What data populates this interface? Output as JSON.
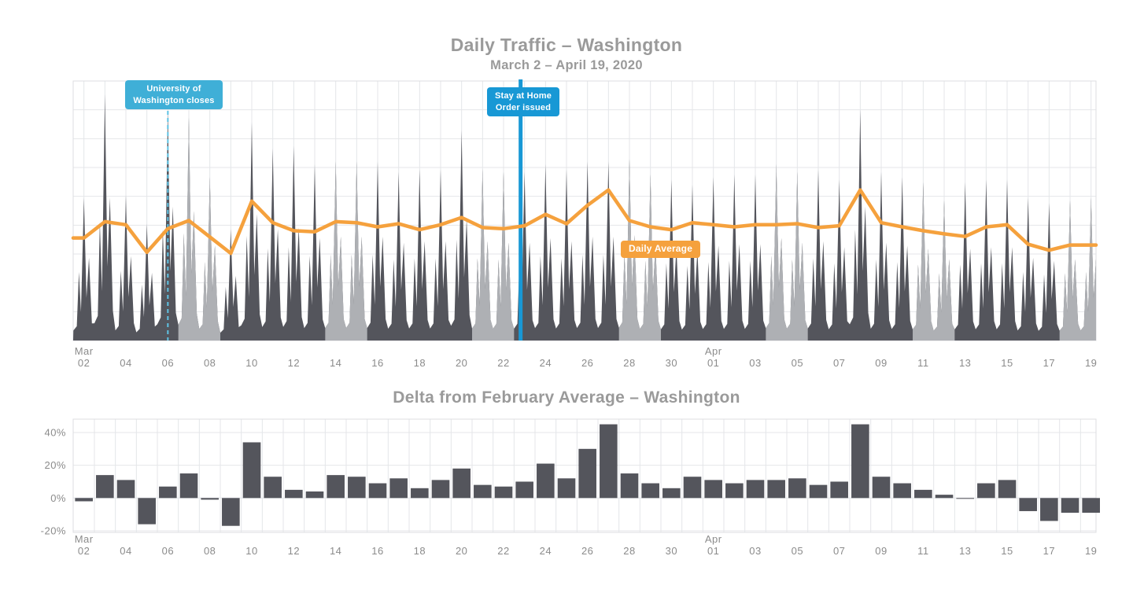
{
  "colors": {
    "weekday_area": "#54555c",
    "weekend_area": "#aeb0b4",
    "avg_line": "#f5a13d",
    "uw_box_blue": "#3fafd7",
    "uw_dash_line": "#5fc3e4",
    "stay_home_blue": "#1898d5",
    "bar": "#54555c",
    "grid": "#e4e6e9",
    "plot_border": "#dcdee1",
    "title_text": "#9a9a9a",
    "tick_text": "#8b8b8b"
  },
  "top": {
    "title": "Daily Traffic – Washington",
    "subtitle": "March 2 – April 19, 2020",
    "inline_label": "Daily Average",
    "annotations": [
      {
        "label": [
          "University of",
          "Washington closes"
        ],
        "date": "Mar 06",
        "day_index": 4,
        "line_style": "dashed"
      },
      {
        "label": [
          "Stay at Home",
          "Order issued"
        ],
        "date": "Mar 23",
        "day_index": 21,
        "line_style": "solid"
      }
    ]
  },
  "bottom": {
    "title": "Delta from February Average – Washington"
  },
  "chart_data": [
    {
      "type": "area",
      "title": "Daily Traffic – Washington",
      "subtitle": "March 2 – April 19, 2020",
      "x": [
        "Mar 02",
        "Mar 03",
        "Mar 04",
        "Mar 05",
        "Mar 06",
        "Mar 07",
        "Mar 08",
        "Mar 09",
        "Mar 10",
        "Mar 11",
        "Mar 12",
        "Mar 13",
        "Mar 14",
        "Mar 15",
        "Mar 16",
        "Mar 17",
        "Mar 18",
        "Mar 19",
        "Mar 20",
        "Mar 21",
        "Mar 22",
        "Mar 23",
        "Mar 24",
        "Mar 25",
        "Mar 26",
        "Mar 27",
        "Mar 28",
        "Mar 29",
        "Mar 30",
        "Mar 31",
        "Apr 01",
        "Apr 02",
        "Apr 03",
        "Apr 04",
        "Apr 05",
        "Apr 06",
        "Apr 07",
        "Apr 08",
        "Apr 09",
        "Apr 10",
        "Apr 11",
        "Apr 12",
        "Apr 13",
        "Apr 14",
        "Apr 15",
        "Apr 16",
        "Apr 17",
        "Apr 18",
        "Apr 19"
      ],
      "x_tick_every": 2,
      "weekend_indices": [
        5,
        6,
        12,
        13,
        19,
        20,
        26,
        27,
        33,
        34,
        40,
        41,
        47,
        48
      ],
      "series": [
        {
          "name": "Daily traffic (area, dark = weekday, light = weekend)",
          "unit": "relative daily peak height 0-1",
          "values": [
            0.55,
            0.95,
            0.56,
            0.45,
            0.89,
            0.86,
            0.63,
            0.43,
            0.84,
            0.74,
            0.75,
            0.68,
            0.69,
            0.69,
            0.69,
            0.65,
            0.66,
            0.66,
            0.81,
            0.66,
            0.65,
            0.65,
            0.68,
            0.66,
            0.69,
            0.69,
            0.7,
            0.64,
            0.62,
            0.6,
            0.63,
            0.64,
            0.64,
            0.68,
            0.65,
            0.66,
            0.62,
            0.89,
            0.65,
            0.63,
            0.61,
            0.54,
            0.61,
            0.62,
            0.62,
            0.55,
            0.53,
            0.54,
            0.55
          ]
        },
        {
          "name": "Daily Average",
          "unit": "relative level 0-100",
          "values": [
            39.5,
            45.8,
            44.6,
            34.0,
            43.1,
            46.2,
            39.9,
            33.6,
            53.7,
            45.4,
            42.3,
            41.9,
            45.8,
            45.4,
            43.8,
            45.0,
            42.7,
            44.6,
            47.4,
            43.5,
            43.1,
            44.2,
            48.6,
            45.0,
            52.1,
            58.0,
            46.2,
            43.8,
            42.7,
            45.4,
            44.6,
            43.8,
            44.6,
            44.6,
            45.0,
            43.5,
            44.2,
            58.0,
            45.4,
            43.8,
            42.3,
            41.1,
            40.1,
            43.8,
            44.6,
            37.1,
            34.8,
            36.8,
            36.8
          ]
        }
      ],
      "intraday_profile": [
        [
          0,
          0.07
        ],
        [
          0.16,
          0.1
        ],
        [
          0.26,
          0.48
        ],
        [
          0.36,
          0.2
        ],
        [
          0.5,
          1.0
        ],
        [
          0.62,
          0.3
        ],
        [
          0.74,
          0.58
        ],
        [
          0.88,
          0.12
        ]
      ],
      "annotations": [
        {
          "label": [
            "University of",
            "Washington closes"
          ],
          "date": "Mar 06",
          "day_index": 4,
          "line_style": "dashed"
        },
        {
          "label": [
            "Stay at Home",
            "Order issued"
          ],
          "date": "Mar 23",
          "day_index": 21,
          "line_style": "solid"
        }
      ],
      "inline_label": "Daily Average",
      "legend_position": "inline",
      "grid": true
    },
    {
      "type": "bar",
      "title": "Delta from February Average – Washington",
      "categories": [
        "Mar 02",
        "Mar 03",
        "Mar 04",
        "Mar 05",
        "Mar 06",
        "Mar 07",
        "Mar 08",
        "Mar 09",
        "Mar 10",
        "Mar 11",
        "Mar 12",
        "Mar 13",
        "Mar 14",
        "Mar 15",
        "Mar 16",
        "Mar 17",
        "Mar 18",
        "Mar 19",
        "Mar 20",
        "Mar 21",
        "Mar 22",
        "Mar 23",
        "Mar 24",
        "Mar 25",
        "Mar 26",
        "Mar 27",
        "Mar 28",
        "Mar 29",
        "Mar 30",
        "Mar 31",
        "Apr 01",
        "Apr 02",
        "Apr 03",
        "Apr 04",
        "Apr 05",
        "Apr 06",
        "Apr 07",
        "Apr 08",
        "Apr 09",
        "Apr 10",
        "Apr 11",
        "Apr 12",
        "Apr 13",
        "Apr 14",
        "Apr 15",
        "Apr 16",
        "Apr 17",
        "Apr 18",
        "Apr 19"
      ],
      "values": [
        -2,
        14,
        11,
        -16,
        7,
        15,
        -1,
        -17,
        34,
        13,
        5,
        4,
        14,
        13,
        9,
        12,
        6,
        11,
        18,
        8,
        7,
        10,
        21,
        12,
        30,
        45,
        15,
        9,
        6,
        13,
        11,
        9,
        11,
        11,
        12,
        8,
        10,
        45,
        13,
        9,
        5,
        2,
        -0.5,
        9,
        11,
        -8,
        -14,
        -9,
        -9
      ],
      "unit": "percent",
      "y_ticks": [
        {
          "label": "40%",
          "value": 40
        },
        {
          "label": "20%",
          "value": 20
        },
        {
          "label": "0%",
          "value": 0
        },
        {
          "label": "-20%",
          "value": -20
        }
      ],
      "ylim": [
        -21,
        48
      ],
      "x_tick_every": 2,
      "grid": true
    }
  ]
}
